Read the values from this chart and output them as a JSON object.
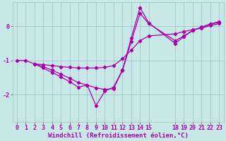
{
  "background_color": "#c8e8e8",
  "grid_color": "#a0c8c8",
  "line_color": "#aa00aa",
  "marker_color": "#aa00aa",
  "xlabel": "Windchill (Refroidissement éolien,°C)",
  "xlabel_fontsize": 6.5,
  "tick_fontsize": 6.0,
  "xlim": [
    -0.5,
    23.5
  ],
  "ylim": [
    -2.8,
    0.7
  ],
  "yticks": [
    0,
    -1,
    -2
  ],
  "series1_x": [
    0,
    1,
    2,
    3,
    4,
    5,
    6,
    7,
    8,
    9,
    10,
    11,
    12,
    13,
    14,
    15,
    18,
    19,
    20,
    21,
    22,
    23
  ],
  "series1_y": [
    -1.0,
    -1.0,
    -1.1,
    -1.12,
    -1.15,
    -1.18,
    -1.2,
    -1.22,
    -1.22,
    -1.22,
    -1.2,
    -1.15,
    -0.95,
    -0.7,
    -0.42,
    -0.28,
    -0.22,
    -0.15,
    -0.1,
    -0.05,
    0.02,
    0.08
  ],
  "series2_x": [
    2,
    3,
    4,
    5,
    6,
    7,
    8,
    9,
    10,
    11,
    12,
    13,
    14,
    15,
    18,
    19,
    20,
    21,
    22,
    23
  ],
  "series2_y": [
    -1.1,
    -1.18,
    -1.28,
    -1.4,
    -1.52,
    -1.65,
    -1.72,
    -1.8,
    -1.85,
    -1.82,
    -1.3,
    -0.45,
    0.38,
    0.08,
    -0.42,
    -0.28,
    -0.12,
    -0.03,
    0.06,
    0.12
  ],
  "series3_x": [
    2,
    3,
    4,
    5,
    6,
    7,
    8,
    9,
    10,
    11,
    12,
    13,
    14,
    15,
    18,
    19,
    20,
    21,
    22,
    23
  ],
  "series3_y": [
    -1.1,
    -1.22,
    -1.35,
    -1.48,
    -1.62,
    -1.78,
    -1.72,
    -2.32,
    -1.9,
    -1.78,
    -1.28,
    -0.35,
    0.55,
    0.1,
    -0.5,
    -0.3,
    -0.12,
    -0.02,
    0.07,
    0.14
  ],
  "xtick_positions": [
    0,
    1,
    2,
    3,
    4,
    5,
    6,
    7,
    8,
    9,
    10,
    11,
    12,
    13,
    14,
    15,
    18,
    19,
    20,
    21,
    22,
    23
  ]
}
